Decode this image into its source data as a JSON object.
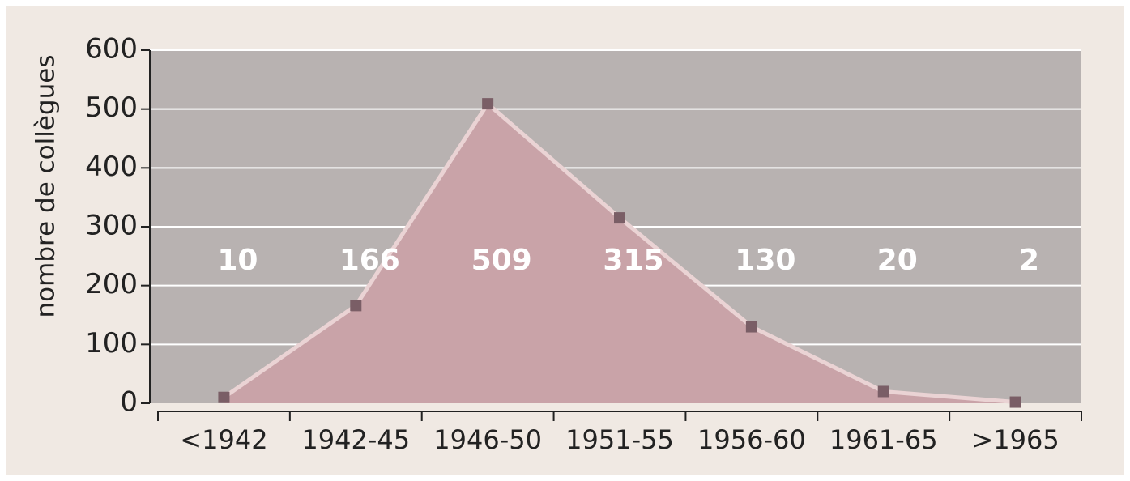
{
  "chart_data": {
    "type": "area",
    "y_label": "nombre de collègues",
    "categories": [
      "<1942",
      "1942-45",
      "1946-50",
      "1951-55",
      "1956-60",
      "1961-65",
      ">1965"
    ],
    "values": [
      10,
      166,
      509,
      315,
      130,
      20,
      2
    ],
    "color": "#c9a3a8",
    "line_color": "#ead3d4",
    "marker_color": "#7a5e66",
    "ylim": [
      0,
      600
    ],
    "yticks": [
      0,
      100,
      200,
      300,
      400,
      500,
      600
    ],
    "grid": true
  }
}
